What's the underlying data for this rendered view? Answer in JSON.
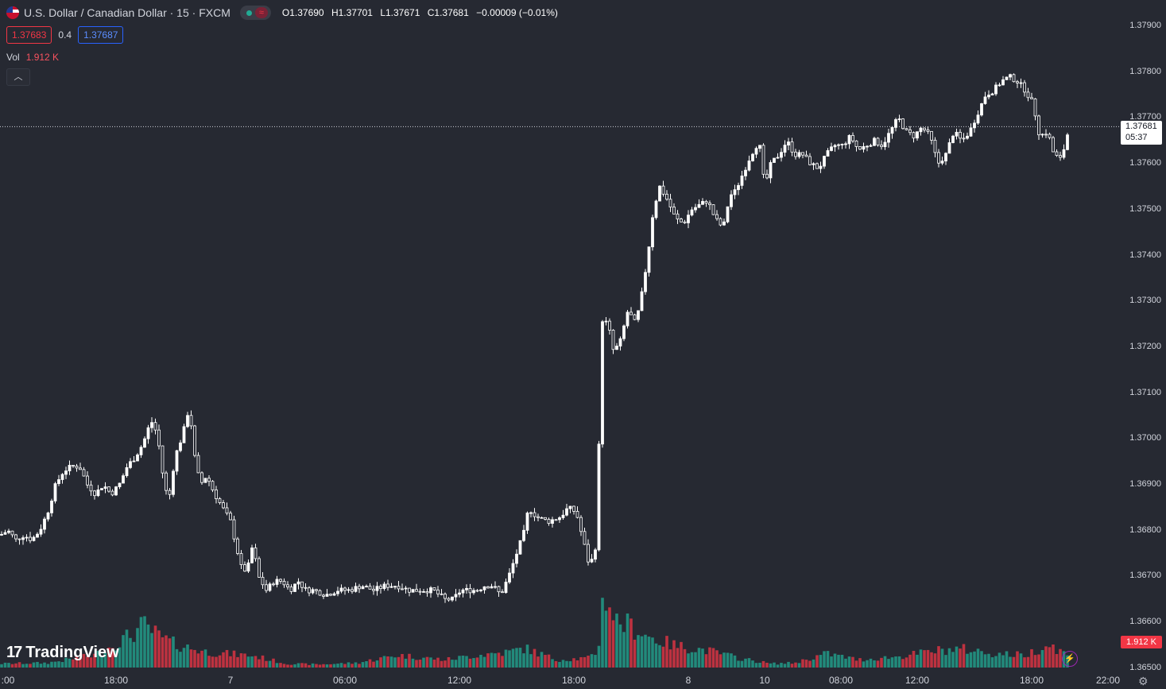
{
  "symbol": {
    "title": "U.S. Dollar / Canadian Dollar · 15 · FXCM",
    "open": "O1.37690",
    "high": "H1.37701",
    "low": "L1.37671",
    "close": "C1.37681",
    "change": "−0.00009 (−0.01%)"
  },
  "trade": {
    "sell": "1.37683",
    "spread": "0.4",
    "buy": "1.37687"
  },
  "volume": {
    "label": "Vol",
    "value": "1.912 K"
  },
  "last_price": {
    "price": "1.37681",
    "countdown": "05:37"
  },
  "volume_label": "1.912 K",
  "branding": "TradingView",
  "icons": {
    "flag": "us-ca-flag-icon",
    "market_open": "market-status-icon",
    "collapse": "chevron-up-icon",
    "bolt": "lightning-icon",
    "settings": "gear-icon"
  },
  "colors": {
    "up_candle": "#ffffff",
    "up_volume": "#22ab94",
    "down_volume": "#f23645",
    "background": "#262932"
  },
  "chart_data": {
    "type": "candlestick",
    "title": "U.S. Dollar / Canadian Dollar · 15 · FXCM",
    "price_ticks": [
      "1.37900",
      "1.37800",
      "1.37700",
      "1.37600",
      "1.37500",
      "1.37400",
      "1.37300",
      "1.37200",
      "1.37100",
      "1.37000",
      "1.36900",
      "1.36800",
      "1.36700",
      "1.36600",
      "1.36500"
    ],
    "time_ticks": [
      ":00",
      "18:00",
      "7",
      "06:00",
      "12:00",
      "18:00",
      "8",
      "10",
      "08:00",
      "12:00",
      "18:00",
      "22:00"
    ],
    "ylim": [
      1.365,
      1.3791
    ],
    "last_price": 1.37681,
    "close_path": [
      [
        0,
        1.3679
      ],
      [
        10,
        1.368
      ],
      [
        20,
        1.3678
      ],
      [
        30,
        1.3679
      ],
      [
        40,
        1.3678
      ],
      [
        50,
        1.368
      ],
      [
        60,
        1.3684
      ],
      [
        70,
        1.369
      ],
      [
        80,
        1.3693
      ],
      [
        90,
        1.3694
      ],
      [
        100,
        1.3694
      ],
      [
        110,
        1.369
      ],
      [
        120,
        1.3688
      ],
      [
        130,
        1.369
      ],
      [
        140,
        1.3688
      ],
      [
        150,
        1.369
      ],
      [
        160,
        1.3694
      ],
      [
        170,
        1.3696
      ],
      [
        180,
        1.3699
      ],
      [
        190,
        1.3704
      ],
      [
        198,
        1.3701
      ],
      [
        205,
        1.3692
      ],
      [
        212,
        1.3686
      ],
      [
        220,
        1.3696
      ],
      [
        230,
        1.3701
      ],
      [
        238,
        1.3707
      ],
      [
        245,
        1.3696
      ],
      [
        252,
        1.369
      ],
      [
        260,
        1.3692
      ],
      [
        270,
        1.3688
      ],
      [
        280,
        1.3685
      ],
      [
        290,
        1.3682
      ],
      [
        298,
        1.3676
      ],
      [
        305,
        1.3671
      ],
      [
        312,
        1.3672
      ],
      [
        318,
        1.3677
      ],
      [
        325,
        1.367
      ],
      [
        335,
        1.3667
      ],
      [
        345,
        1.3669
      ],
      [
        355,
        1.3669
      ],
      [
        365,
        1.3667
      ],
      [
        375,
        1.3669
      ],
      [
        385,
        1.3667
      ],
      [
        395,
        1.3667
      ],
      [
        410,
        1.3666
      ],
      [
        425,
        1.3667
      ],
      [
        440,
        1.3667
      ],
      [
        455,
        1.3668
      ],
      [
        470,
        1.3667
      ],
      [
        485,
        1.3668
      ],
      [
        500,
        1.3668
      ],
      [
        515,
        1.3667
      ],
      [
        530,
        1.3667
      ],
      [
        545,
        1.3667
      ],
      [
        560,
        1.3665
      ],
      [
        570,
        1.3665
      ],
      [
        580,
        1.3667
      ],
      [
        590,
        1.3667
      ],
      [
        600,
        1.3667
      ],
      [
        610,
        1.3668
      ],
      [
        620,
        1.3668
      ],
      [
        630,
        1.3666
      ],
      [
        640,
        1.367
      ],
      [
        650,
        1.3675
      ],
      [
        660,
        1.368
      ],
      [
        665,
        1.3685
      ],
      [
        675,
        1.3683
      ],
      [
        690,
        1.3682
      ],
      [
        705,
        1.3683
      ],
      [
        715,
        1.3685
      ],
      [
        725,
        1.3684
      ],
      [
        735,
        1.3677
      ],
      [
        742,
        1.3672
      ],
      [
        750,
        1.3677
      ],
      [
        758,
        1.3726
      ],
      [
        765,
        1.3725
      ],
      [
        772,
        1.3719
      ],
      [
        780,
        1.3721
      ],
      [
        790,
        1.3728
      ],
      [
        800,
        1.3725
      ],
      [
        808,
        1.3732
      ],
      [
        815,
        1.374
      ],
      [
        822,
        1.375
      ],
      [
        830,
        1.3755
      ],
      [
        840,
        1.3752
      ],
      [
        850,
        1.3748
      ],
      [
        860,
        1.3747
      ],
      [
        870,
        1.375
      ],
      [
        880,
        1.3751
      ],
      [
        890,
        1.3752
      ],
      [
        900,
        1.3748
      ],
      [
        910,
        1.3746
      ],
      [
        918,
        1.3753
      ],
      [
        925,
        1.3754
      ],
      [
        935,
        1.3758
      ],
      [
        945,
        1.3762
      ],
      [
        955,
        1.3765
      ],
      [
        962,
        1.3755
      ],
      [
        970,
        1.376
      ],
      [
        980,
        1.3762
      ],
      [
        990,
        1.3765
      ],
      [
        1000,
        1.3762
      ],
      [
        1010,
        1.3762
      ],
      [
        1020,
        1.376
      ],
      [
        1030,
        1.3759
      ],
      [
        1040,
        1.3762
      ],
      [
        1050,
        1.3764
      ],
      [
        1060,
        1.3764
      ],
      [
        1070,
        1.3766
      ],
      [
        1080,
        1.3763
      ],
      [
        1090,
        1.3764
      ],
      [
        1100,
        1.3765
      ],
      [
        1110,
        1.3764
      ],
      [
        1120,
        1.3767
      ],
      [
        1130,
        1.377
      ],
      [
        1140,
        1.3767
      ],
      [
        1150,
        1.3766
      ],
      [
        1160,
        1.3768
      ],
      [
        1170,
        1.3766
      ],
      [
        1180,
        1.376
      ],
      [
        1190,
        1.3762
      ],
      [
        1200,
        1.3767
      ],
      [
        1210,
        1.3765
      ],
      [
        1220,
        1.3767
      ],
      [
        1230,
        1.3771
      ],
      [
        1240,
        1.3775
      ],
      [
        1250,
        1.3776
      ],
      [
        1260,
        1.3778
      ],
      [
        1270,
        1.3779
      ],
      [
        1280,
        1.3778
      ],
      [
        1290,
        1.3776
      ],
      [
        1300,
        1.3773
      ],
      [
        1308,
        1.3766
      ],
      [
        1318,
        1.3767
      ],
      [
        1326,
        1.3762
      ],
      [
        1334,
        1.3761
      ],
      [
        1340,
        1.3764
      ],
      [
        1345,
        1.3768
      ]
    ],
    "volume_profile": [
      [
        0,
        0.05
      ],
      [
        60,
        0.06
      ],
      [
        120,
        0.16
      ],
      [
        170,
        0.45
      ],
      [
        180,
        0.55
      ],
      [
        200,
        0.4
      ],
      [
        220,
        0.3
      ],
      [
        260,
        0.2
      ],
      [
        320,
        0.15
      ],
      [
        360,
        0.05
      ],
      [
        400,
        0.04
      ],
      [
        450,
        0.06
      ],
      [
        500,
        0.16
      ],
      [
        560,
        0.1
      ],
      [
        600,
        0.16
      ],
      [
        640,
        0.2
      ],
      [
        660,
        0.25
      ],
      [
        700,
        0.1
      ],
      [
        740,
        0.12
      ],
      [
        752,
        0.2
      ],
      [
        760,
        1.0
      ],
      [
        775,
        0.6
      ],
      [
        790,
        0.55
      ],
      [
        820,
        0.38
      ],
      [
        850,
        0.28
      ],
      [
        890,
        0.22
      ],
      [
        930,
        0.12
      ],
      [
        970,
        0.05
      ],
      [
        1000,
        0.06
      ],
      [
        1040,
        0.18
      ],
      [
        1080,
        0.1
      ],
      [
        1130,
        0.14
      ],
      [
        1180,
        0.22
      ],
      [
        1210,
        0.24
      ],
      [
        1250,
        0.18
      ],
      [
        1290,
        0.16
      ],
      [
        1320,
        0.3
      ],
      [
        1345,
        0.15
      ]
    ]
  }
}
